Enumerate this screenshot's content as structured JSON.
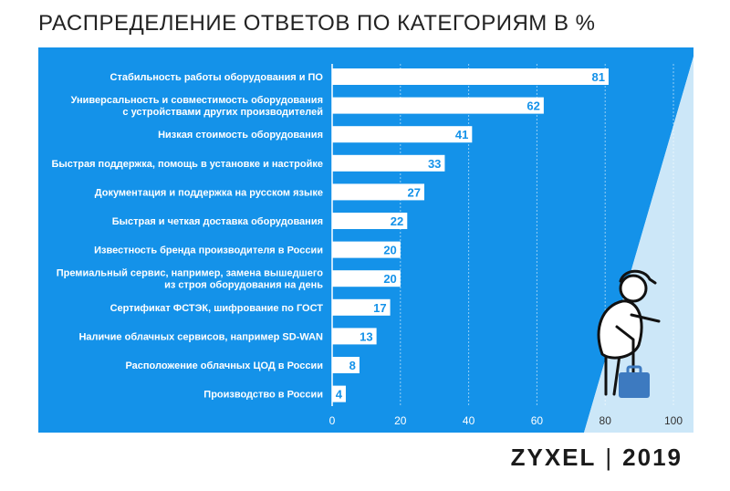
{
  "page": {
    "title": "РАСПРЕДЕЛЕНИЕ ОТВЕТОВ ПО КАТЕГОРИЯМ В %",
    "brand": "ZYXEL",
    "separator": "|",
    "year": "2019"
  },
  "colors": {
    "background_blue": "#1492e9",
    "light_blue": "#cce7f8",
    "bar": "#ffffff",
    "value_text": "#1492e9",
    "label_text": "#ffffff",
    "title_text": "#222222",
    "figure_case": "#3d7ac0"
  },
  "icons": [
    "person-with-case-illustration",
    "briefcase-icon"
  ],
  "chart_data": {
    "type": "bar",
    "orientation": "horizontal",
    "categories": [
      [
        "Стабильность работы оборудования и ПО"
      ],
      [
        "Универсальность и совместимость оборудования",
        "с устройствами других производителей"
      ],
      [
        "Низкая стоимость оборудования"
      ],
      [
        "Быстрая поддержка, помощь в установке и настройке"
      ],
      [
        "Документация и поддержка на русском языке"
      ],
      [
        "Быстрая и четкая доставка оборудования"
      ],
      [
        "Известность бренда производителя в России"
      ],
      [
        "Премиальный сервис, например, замена вышедшего",
        "из строя оборудования на день"
      ],
      [
        "Сертификат ФСТЭК, шифрование по ГОСТ"
      ],
      [
        "Наличие облачных сервисов, например SD-WAN"
      ],
      [
        "Расположение облачных ЦОД в России"
      ],
      [
        "Производство в России"
      ]
    ],
    "values": [
      81,
      62,
      41,
      33,
      27,
      22,
      20,
      20,
      17,
      13,
      8,
      4
    ],
    "xlim": [
      0,
      100
    ],
    "xticks": [
      0,
      20,
      40,
      60,
      80,
      100
    ],
    "grid": true,
    "data_labels": true
  }
}
